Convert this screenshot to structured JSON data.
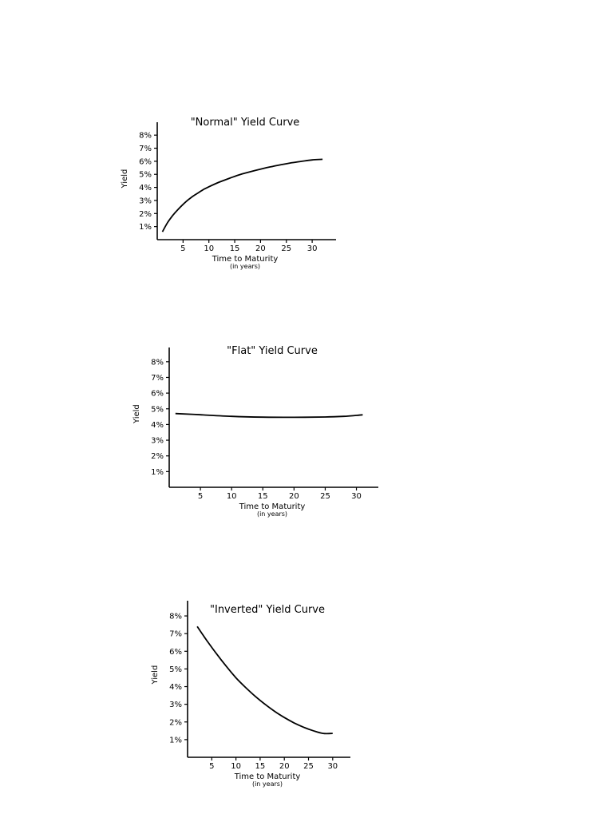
{
  "chart_data": [
    {
      "type": "line",
      "title": "\"Normal\" Yield Curve",
      "xlabel": "Time to Maturity",
      "xlabel_sub": "(in years)",
      "ylabel": "Yield",
      "xlim": [
        0,
        34
      ],
      "ylim": [
        0,
        8.5
      ],
      "x_ticks": [
        5,
        10,
        15,
        20,
        25,
        30
      ],
      "y_ticks": [
        "1%",
        "2%",
        "3%",
        "4%",
        "5%",
        "6%",
        "7%",
        "8%"
      ],
      "grid": false,
      "series": [
        {
          "color": "#000000",
          "x": [
            1,
            2,
            3,
            4,
            5,
            6,
            7,
            8,
            9,
            10,
            12,
            14,
            16,
            18,
            20,
            22,
            24,
            26,
            28,
            30,
            32
          ],
          "y": [
            0.6,
            1.3,
            1.85,
            2.3,
            2.7,
            3.05,
            3.35,
            3.6,
            3.85,
            4.05,
            4.4,
            4.7,
            4.98,
            5.2,
            5.4,
            5.58,
            5.74,
            5.88,
            6.0,
            6.1,
            6.15
          ]
        }
      ]
    },
    {
      "type": "line",
      "title": "\"Flat\" Yield Curve",
      "xlabel": "Time to Maturity",
      "xlabel_sub": "(in years)",
      "ylabel": "Yield",
      "xlim": [
        0,
        33
      ],
      "ylim": [
        0,
        8.5
      ],
      "x_ticks": [
        5,
        10,
        15,
        20,
        25,
        30
      ],
      "y_ticks": [
        "1%",
        "2%",
        "3%",
        "4%",
        "5%",
        "6%",
        "7%",
        "8%"
      ],
      "grid": false,
      "series": [
        {
          "color": "#000000",
          "x": [
            1,
            5,
            10,
            15,
            20,
            25,
            28,
            30,
            31
          ],
          "y": [
            4.7,
            4.62,
            4.52,
            4.47,
            4.46,
            4.48,
            4.52,
            4.58,
            4.62
          ]
        }
      ]
    },
    {
      "type": "line",
      "title": "\"Inverted\" Yield Curve",
      "xlabel": "Time to Maturity",
      "xlabel_sub": "(in years)",
      "ylabel": "Yield",
      "xlim": [
        0,
        33
      ],
      "ylim": [
        0,
        8.5
      ],
      "x_ticks": [
        5,
        10,
        15,
        20,
        25,
        30
      ],
      "y_ticks": [
        "1%",
        "2%",
        "3%",
        "4%",
        "5%",
        "6%",
        "7%",
        "8%"
      ],
      "grid": false,
      "series": [
        {
          "color": "#000000",
          "x": [
            2,
            4,
            6,
            8,
            10,
            12,
            14,
            16,
            18,
            20,
            22,
            24,
            26,
            28,
            30
          ],
          "y": [
            7.4,
            6.6,
            5.85,
            5.15,
            4.5,
            3.95,
            3.45,
            3.0,
            2.6,
            2.25,
            1.95,
            1.7,
            1.5,
            1.35,
            1.35
          ]
        }
      ]
    }
  ]
}
